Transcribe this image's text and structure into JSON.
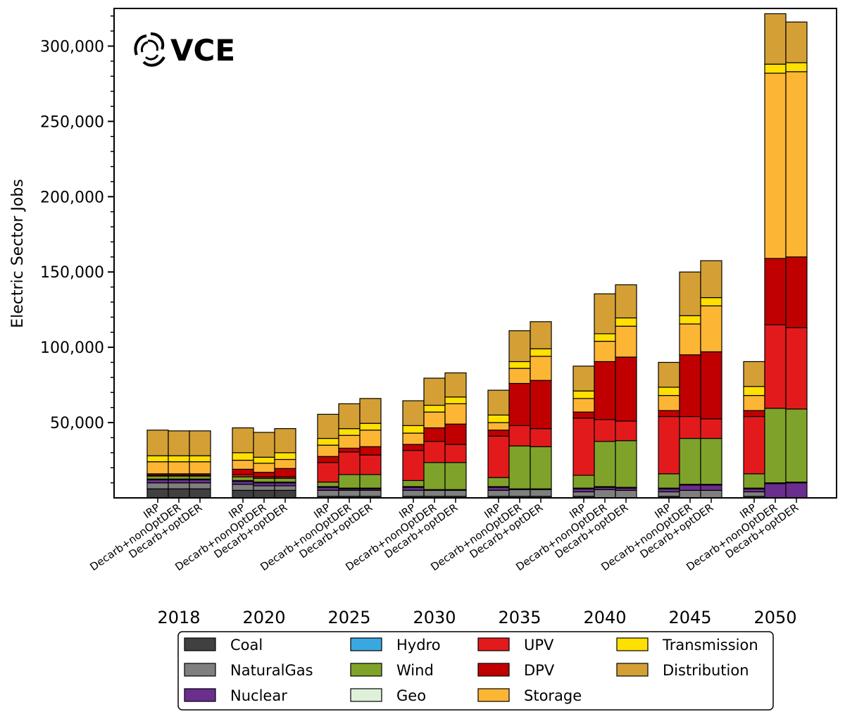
{
  "chart_data": {
    "type": "bar",
    "stacked": true,
    "logo": "VCE",
    "ylabel": "Electric Sector Jobs",
    "ylim": [
      0,
      325000
    ],
    "yticks": [
      50000,
      100000,
      150000,
      200000,
      250000,
      300000
    ],
    "ytick_labels": [
      "50,000",
      "100,000",
      "150,000",
      "200,000",
      "250,000",
      "300,000"
    ],
    "groups": [
      "2018",
      "2020",
      "2025",
      "2030",
      "2035",
      "2040",
      "2045",
      "2050"
    ],
    "scenarios": [
      "IRP",
      "Decarb+nonOptDER",
      "Decarb+optDER"
    ],
    "legend_placement": "bottom",
    "series": [
      {
        "name": "Coal",
        "color": "#404040",
        "values": [
          [
            6000,
            6000,
            6000
          ],
          [
            5000,
            5000,
            5000
          ],
          [
            1000,
            1000,
            1000
          ],
          [
            1000,
            1000,
            1000
          ],
          [
            1000,
            1000,
            1000
          ],
          [
            1000,
            0,
            0
          ],
          [
            1000,
            0,
            0
          ],
          [
            1000,
            0,
            0
          ]
        ]
      },
      {
        "name": "NaturalGas",
        "color": "#7f7f7f",
        "values": [
          [
            4000,
            4000,
            4000
          ],
          [
            4000,
            3000,
            3000
          ],
          [
            4000,
            4000,
            4000
          ],
          [
            4000,
            4000,
            4000
          ],
          [
            4000,
            4500,
            4500
          ],
          [
            3000,
            5500,
            5000
          ],
          [
            3000,
            5000,
            5000
          ],
          [
            3000,
            0,
            0
          ]
        ]
      },
      {
        "name": "Nuclear",
        "color": "#6a2e8e",
        "values": [
          [
            2000,
            2000,
            2000
          ],
          [
            2000,
            2000,
            2000
          ],
          [
            2000,
            1000,
            1000
          ],
          [
            2000,
            0,
            0
          ],
          [
            2000,
            0,
            0
          ],
          [
            2000,
            1500,
            1500
          ],
          [
            2000,
            3500,
            3500
          ],
          [
            2000,
            9500,
            10000
          ]
        ]
      },
      {
        "name": "Hydro",
        "color": "#3aa8e0",
        "values": [
          [
            500,
            500,
            500
          ],
          [
            500,
            500,
            500
          ],
          [
            500,
            500,
            500
          ],
          [
            500,
            500,
            500
          ],
          [
            500,
            500,
            500
          ],
          [
            500,
            500,
            500
          ],
          [
            500,
            500,
            500
          ],
          [
            500,
            500,
            500
          ]
        ]
      },
      {
        "name": "Wind",
        "color": "#7fa32a",
        "values": [
          [
            2000,
            2000,
            2000
          ],
          [
            2500,
            2500,
            2500
          ],
          [
            3000,
            9000,
            9000
          ],
          [
            4000,
            18000,
            18000
          ],
          [
            6000,
            28500,
            28000
          ],
          [
            8500,
            30000,
            31000
          ],
          [
            9500,
            30500,
            30500
          ],
          [
            9500,
            49500,
            48500
          ]
        ]
      },
      {
        "name": "Geo",
        "color": "#dff0d8",
        "values": [
          [
            0,
            0,
            0
          ],
          [
            0,
            0,
            0
          ],
          [
            0,
            0,
            0
          ],
          [
            0,
            0,
            0
          ],
          [
            0,
            0,
            0
          ],
          [
            0,
            0,
            0
          ],
          [
            0,
            0,
            0
          ],
          [
            0,
            0,
            0
          ]
        ]
      },
      {
        "name": "UPV",
        "color": "#e31a1c",
        "values": [
          [
            500,
            500,
            500
          ],
          [
            1500,
            1000,
            1000
          ],
          [
            13000,
            15000,
            13000
          ],
          [
            20000,
            14000,
            12000
          ],
          [
            27500,
            13500,
            12000
          ],
          [
            38000,
            14500,
            13000
          ],
          [
            38000,
            14500,
            13000
          ],
          [
            38000,
            55500,
            54000
          ]
        ]
      },
      {
        "name": "DPV",
        "color": "#c00000",
        "values": [
          [
            1000,
            1000,
            1000
          ],
          [
            3500,
            3000,
            5500
          ],
          [
            4000,
            2500,
            5500
          ],
          [
            4000,
            9000,
            13500
          ],
          [
            4000,
            28000,
            32000
          ],
          [
            4000,
            38500,
            42500
          ],
          [
            4000,
            41000,
            44500
          ],
          [
            4000,
            44000,
            47000
          ]
        ]
      },
      {
        "name": "Storage",
        "color": "#fdb634",
        "values": [
          [
            8000,
            8000,
            8000
          ],
          [
            6000,
            6000,
            6000
          ],
          [
            7500,
            8500,
            11000
          ],
          [
            7500,
            10500,
            13500
          ],
          [
            5000,
            10000,
            16000
          ],
          [
            9000,
            13500,
            20500
          ],
          [
            10000,
            20500,
            30500
          ],
          [
            10000,
            123000,
            123000
          ]
        ]
      },
      {
        "name": "Transmission",
        "color": "#ffe000",
        "values": [
          [
            4000,
            4000,
            4000
          ],
          [
            5000,
            4000,
            4500
          ],
          [
            4500,
            4500,
            4500
          ],
          [
            5000,
            4500,
            4500
          ],
          [
            5000,
            4500,
            5000
          ],
          [
            5000,
            5000,
            5500
          ],
          [
            5500,
            5500,
            5500
          ],
          [
            6000,
            6000,
            6000
          ]
        ]
      },
      {
        "name": "Distribution",
        "color": "#d4a035",
        "values": [
          [
            17000,
            16500,
            16500
          ],
          [
            16500,
            16500,
            16000
          ],
          [
            16000,
            16500,
            16500
          ],
          [
            16500,
            18000,
            16000
          ],
          [
            16500,
            20500,
            18000
          ],
          [
            16500,
            26500,
            22000
          ],
          [
            16500,
            29000,
            24500
          ],
          [
            16500,
            33500,
            27000
          ]
        ]
      }
    ]
  }
}
